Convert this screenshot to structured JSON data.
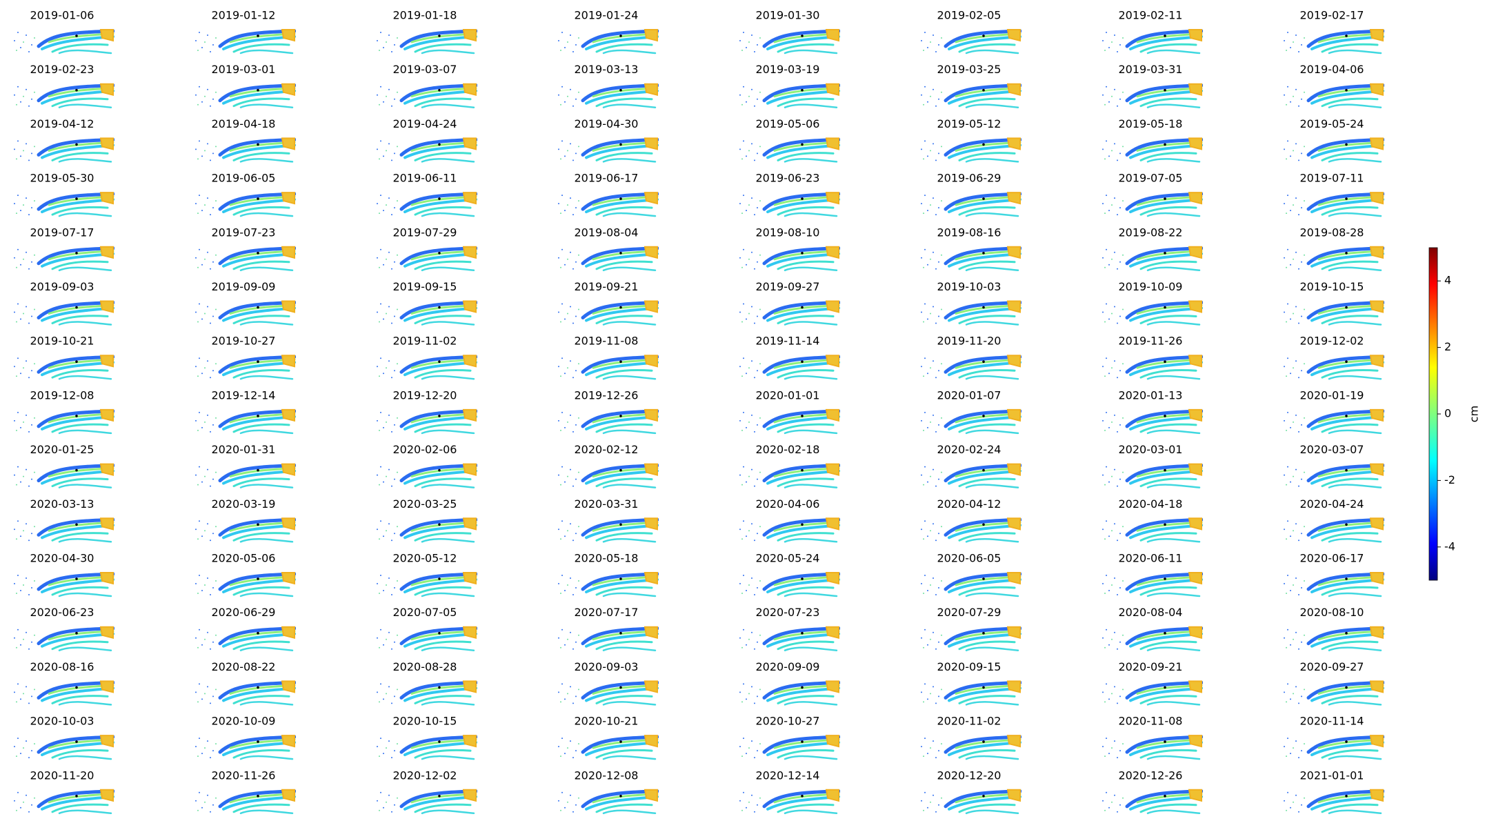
{
  "chart_data": {
    "type": "image_grid",
    "titles": [
      "2019-01-06",
      "2019-01-12",
      "2019-01-18",
      "2019-01-24",
      "2019-01-30",
      "2019-02-05",
      "2019-02-11",
      "2019-02-17",
      "2019-02-23",
      "2019-03-01",
      "2019-03-07",
      "2019-03-13",
      "2019-03-19",
      "2019-03-25",
      "2019-03-31",
      "2019-04-06",
      "2019-04-12",
      "2019-04-18",
      "2019-04-24",
      "2019-04-30",
      "2019-05-06",
      "2019-05-12",
      "2019-05-18",
      "2019-05-24",
      "2019-05-30",
      "2019-06-05",
      "2019-06-11",
      "2019-06-17",
      "2019-06-23",
      "2019-06-29",
      "2019-07-05",
      "2019-07-11",
      "2019-07-17",
      "2019-07-23",
      "2019-07-29",
      "2019-08-04",
      "2019-08-10",
      "2019-08-16",
      "2019-08-22",
      "2019-08-28",
      "2019-09-03",
      "2019-09-09",
      "2019-09-15",
      "2019-09-21",
      "2019-09-27",
      "2019-10-03",
      "2019-10-09",
      "2019-10-15",
      "2019-10-21",
      "2019-10-27",
      "2019-11-02",
      "2019-11-08",
      "2019-11-14",
      "2019-11-20",
      "2019-11-26",
      "2019-12-02",
      "2019-12-08",
      "2019-12-14",
      "2019-12-20",
      "2019-12-26",
      "2020-01-01",
      "2020-01-07",
      "2020-01-13",
      "2020-01-19",
      "2020-01-25",
      "2020-01-31",
      "2020-02-06",
      "2020-02-12",
      "2020-02-18",
      "2020-02-24",
      "2020-03-01",
      "2020-03-07",
      "2020-03-13",
      "2020-03-19",
      "2020-03-25",
      "2020-03-31",
      "2020-04-06",
      "2020-04-12",
      "2020-04-18",
      "2020-04-24",
      "2020-04-30",
      "2020-05-06",
      "2020-05-12",
      "2020-05-18",
      "2020-05-24",
      "2020-06-05",
      "2020-06-11",
      "2020-06-17",
      "2020-06-23",
      "2020-06-29",
      "2020-07-05",
      "2020-07-17",
      "2020-07-23",
      "2020-07-29",
      "2020-08-04",
      "2020-08-10",
      "2020-08-16",
      "2020-08-22",
      "2020-08-28",
      "2020-09-03",
      "2020-09-09",
      "2020-09-15",
      "2020-09-21",
      "2020-09-27",
      "2020-10-03",
      "2020-10-09",
      "2020-10-15",
      "2020-10-21",
      "2020-10-27",
      "2020-11-02",
      "2020-11-08",
      "2020-11-14",
      "2020-11-20",
      "2020-11-26",
      "2020-12-02",
      "2020-12-08",
      "2020-12-14",
      "2020-12-20",
      "2020-12-26",
      "2021-01-01"
    ],
    "colorbar": {
      "label": "cm",
      "ylim": [
        -5,
        5
      ],
      "yticks": [
        -4,
        -2,
        0,
        2,
        4
      ],
      "colormap": "jet"
    }
  }
}
